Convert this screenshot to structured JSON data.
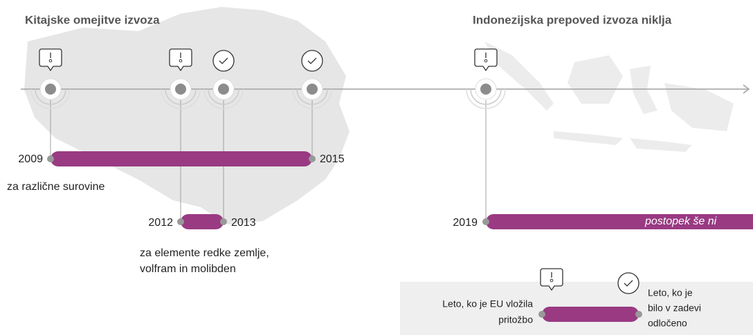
{
  "sections": [
    {
      "title": "Kitajske omejitve izvoza"
    },
    {
      "title": "Indonezijska prepoved izvoza niklja"
    }
  ],
  "events": [
    {
      "start": "2009",
      "end": "2015",
      "note": [
        "za različne surovine"
      ]
    },
    {
      "start": "2012",
      "end": "2013",
      "note": [
        "za elemente redke zemlje,",
        "volfram in molibden"
      ]
    },
    {
      "start": "2019",
      "status": "postopek še ni"
    }
  ],
  "legend": {
    "complaint": [
      "Leto, ko je EU vložila",
      "pritožbo"
    ],
    "decided": [
      "Leto, ko je",
      "bilo v zadevi",
      "odločeno"
    ]
  }
}
